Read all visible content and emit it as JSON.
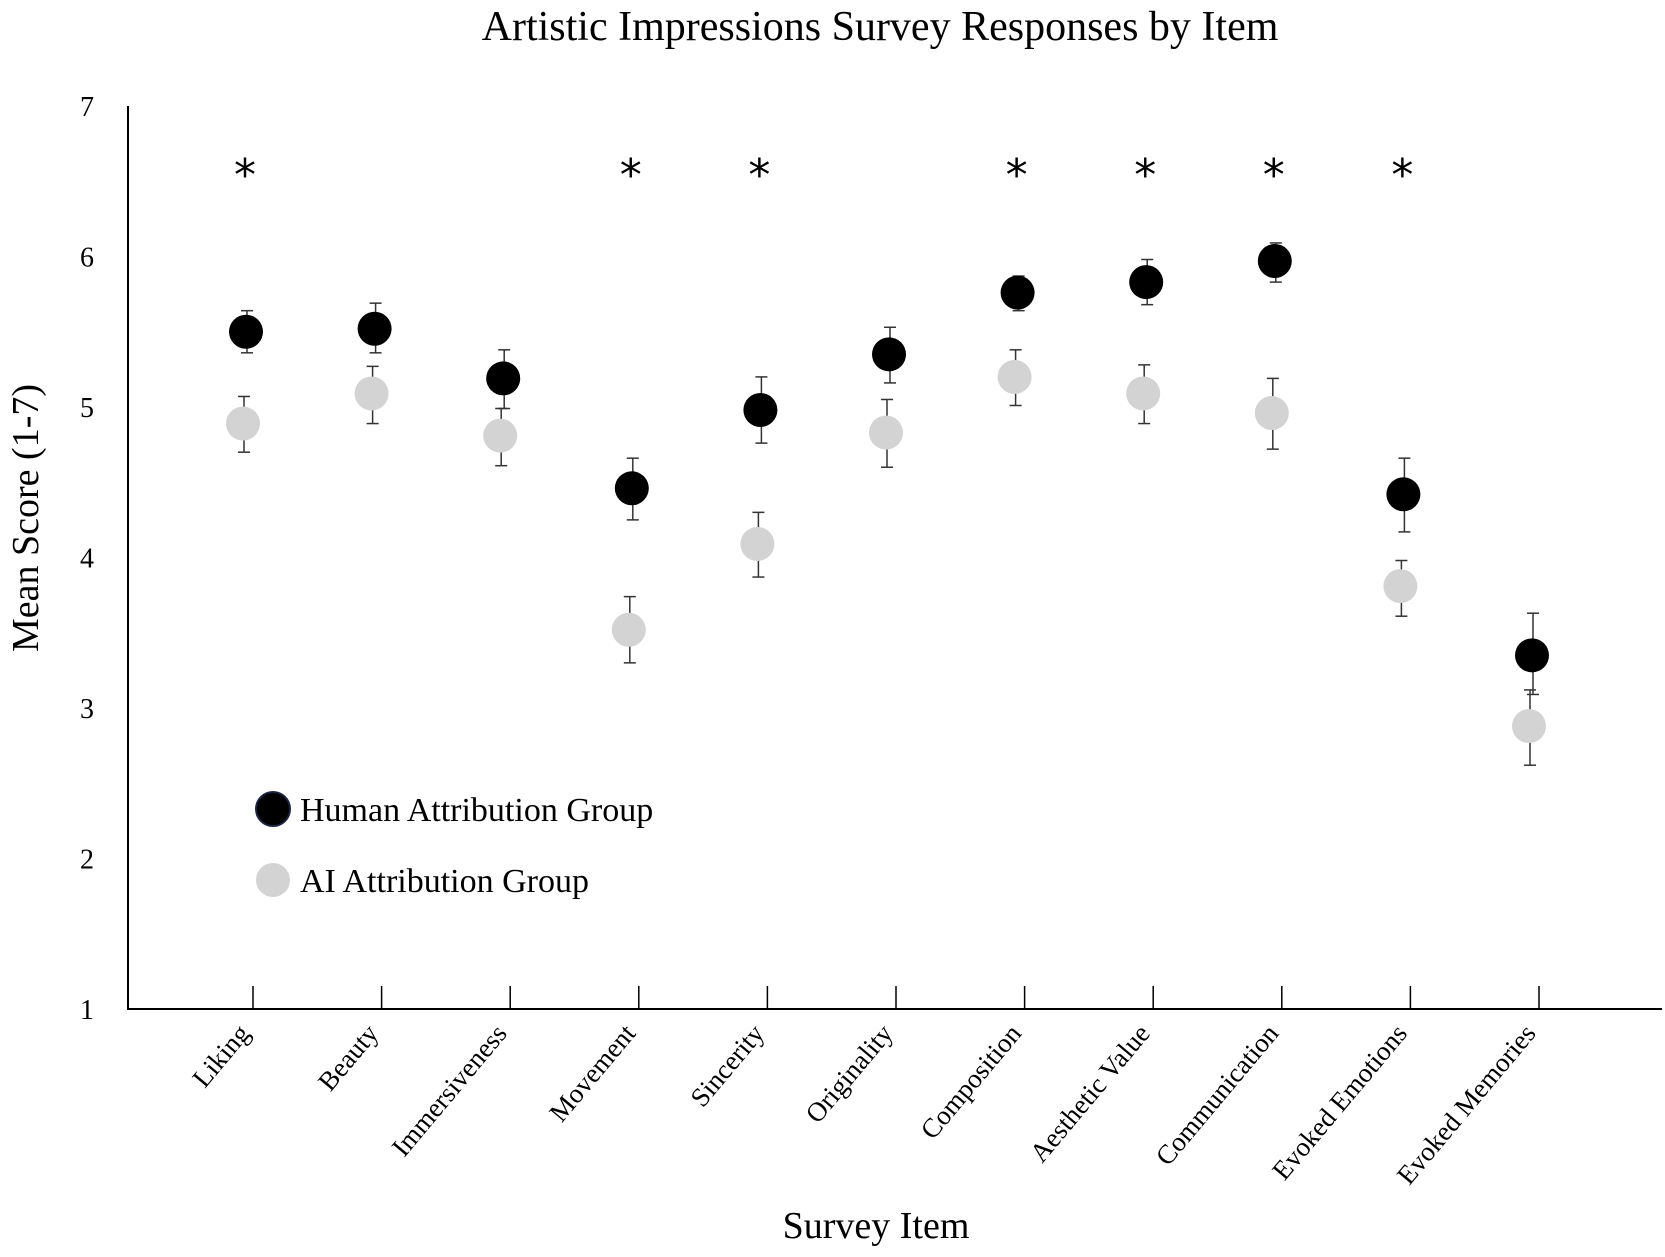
{
  "chart_data": {
    "type": "scatter",
    "title": "Artistic Impressions Survey Responses by Item",
    "xlabel": "Survey Item",
    "ylabel": "Mean Score (1-7)",
    "ylim": [
      1,
      7
    ],
    "yticks": [
      "1",
      "2",
      "3",
      "4",
      "5",
      "6",
      "7"
    ],
    "grid": false,
    "legend_position": "bottom-left",
    "categories": [
      "Liking",
      "Beauty",
      "Immersiveness",
      "Movement",
      "Sincerity",
      "Originality",
      "Composition",
      "Aesthetic Value",
      "Communication",
      "Evoked Emotions",
      "Evoked Memories"
    ],
    "significance_marker": "*",
    "significant": [
      true,
      false,
      false,
      true,
      true,
      false,
      true,
      true,
      true,
      true,
      false
    ],
    "series": [
      {
        "name": "Human Attribution Group",
        "color": "#000000",
        "values": [
          5.5,
          5.52,
          5.19,
          4.46,
          4.98,
          5.35,
          5.76,
          5.83,
          5.97,
          4.42,
          3.35
        ],
        "err_low": [
          5.36,
          5.36,
          4.99,
          4.25,
          4.76,
          5.16,
          5.64,
          5.68,
          5.83,
          4.17,
          3.09
        ],
        "err_high": [
          5.64,
          5.69,
          5.38,
          4.66,
          5.2,
          5.53,
          5.87,
          5.98,
          6.09,
          4.66,
          3.63
        ]
      },
      {
        "name": "AI Attribution Group",
        "color": "#d3d3d3",
        "values": [
          4.89,
          5.09,
          4.81,
          3.52,
          4.09,
          4.83,
          5.2,
          5.09,
          4.96,
          3.81,
          2.88
        ],
        "err_low": [
          4.7,
          4.89,
          4.61,
          3.3,
          3.87,
          4.6,
          5.01,
          4.89,
          4.72,
          3.61,
          2.62
        ],
        "err_high": [
          5.07,
          5.27,
          4.99,
          3.74,
          4.3,
          5.05,
          5.38,
          5.28,
          5.19,
          3.98,
          3.12
        ]
      }
    ]
  }
}
